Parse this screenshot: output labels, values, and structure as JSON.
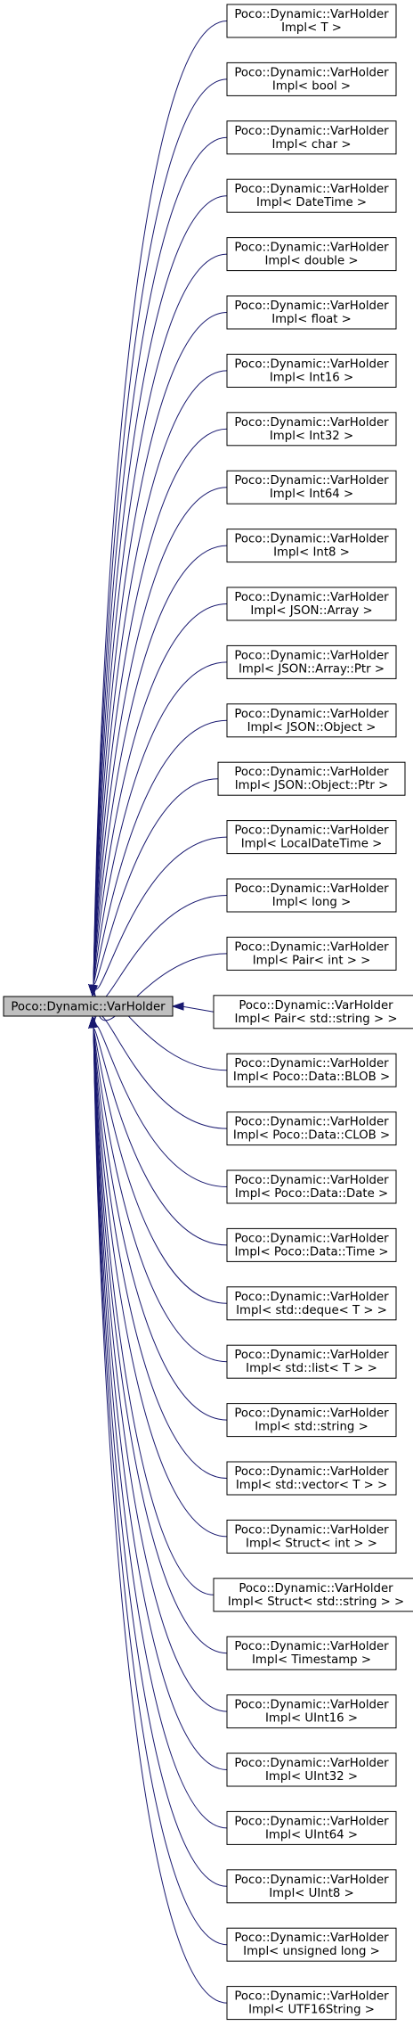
{
  "base": {
    "label": "Poco::Dynamic::VarHolder"
  },
  "derived": [
    {
      "line1": "Poco::Dynamic::VarHolder",
      "line2": "Impl< T >"
    },
    {
      "line1": "Poco::Dynamic::VarHolder",
      "line2": "Impl< bool >"
    },
    {
      "line1": "Poco::Dynamic::VarHolder",
      "line2": "Impl< char >"
    },
    {
      "line1": "Poco::Dynamic::VarHolder",
      "line2": "Impl< DateTime >"
    },
    {
      "line1": "Poco::Dynamic::VarHolder",
      "line2": "Impl< double >"
    },
    {
      "line1": "Poco::Dynamic::VarHolder",
      "line2": "Impl< float >"
    },
    {
      "line1": "Poco::Dynamic::VarHolder",
      "line2": "Impl< Int16 >"
    },
    {
      "line1": "Poco::Dynamic::VarHolder",
      "line2": "Impl< Int32 >"
    },
    {
      "line1": "Poco::Dynamic::VarHolder",
      "line2": "Impl< Int64 >"
    },
    {
      "line1": "Poco::Dynamic::VarHolder",
      "line2": "Impl< Int8 >"
    },
    {
      "line1": "Poco::Dynamic::VarHolder",
      "line2": "Impl< JSON::Array >"
    },
    {
      "line1": "Poco::Dynamic::VarHolder",
      "line2": "Impl< JSON::Array::Ptr >"
    },
    {
      "line1": "Poco::Dynamic::VarHolder",
      "line2": "Impl< JSON::Object >"
    },
    {
      "line1": "Poco::Dynamic::VarHolder",
      "line2": "Impl< JSON::Object::Ptr >"
    },
    {
      "line1": "Poco::Dynamic::VarHolder",
      "line2": "Impl< LocalDateTime >"
    },
    {
      "line1": "Poco::Dynamic::VarHolder",
      "line2": "Impl< long >"
    },
    {
      "line1": "Poco::Dynamic::VarHolder",
      "line2": "Impl< Pair< int > >"
    },
    {
      "line1": "Poco::Dynamic::VarHolder",
      "line2": "Impl< Pair< std::string > >"
    },
    {
      "line1": "Poco::Dynamic::VarHolder",
      "line2": "Impl< Poco::Data::BLOB >"
    },
    {
      "line1": "Poco::Dynamic::VarHolder",
      "line2": "Impl< Poco::Data::CLOB >"
    },
    {
      "line1": "Poco::Dynamic::VarHolder",
      "line2": "Impl< Poco::Data::Date >"
    },
    {
      "line1": "Poco::Dynamic::VarHolder",
      "line2": "Impl< Poco::Data::Time >"
    },
    {
      "line1": "Poco::Dynamic::VarHolder",
      "line2": "Impl< std::deque< T > >"
    },
    {
      "line1": "Poco::Dynamic::VarHolder",
      "line2": "Impl< std::list< T > >"
    },
    {
      "line1": "Poco::Dynamic::VarHolder",
      "line2": "Impl< std::string >"
    },
    {
      "line1": "Poco::Dynamic::VarHolder",
      "line2": "Impl< std::vector< T > >"
    },
    {
      "line1": "Poco::Dynamic::VarHolder",
      "line2": "Impl< Struct< int > >"
    },
    {
      "line1": "Poco::Dynamic::VarHolder",
      "line2": "Impl< Struct< std::string > >"
    },
    {
      "line1": "Poco::Dynamic::VarHolder",
      "line2": "Impl< Timestamp >"
    },
    {
      "line1": "Poco::Dynamic::VarHolder",
      "line2": "Impl< UInt16 >"
    },
    {
      "line1": "Poco::Dynamic::VarHolder",
      "line2": "Impl< UInt32 >"
    },
    {
      "line1": "Poco::Dynamic::VarHolder",
      "line2": "Impl< UInt64 >"
    },
    {
      "line1": "Poco::Dynamic::VarHolder",
      "line2": "Impl< UInt8 >"
    },
    {
      "line1": "Poco::Dynamic::VarHolder",
      "line2": "Impl< unsigned long >"
    },
    {
      "line1": "Poco::Dynamic::VarHolder",
      "line2": "Impl< UTF16String >"
    }
  ],
  "colors": {
    "edge": "#191970",
    "base_fill": "#bfbfbf",
    "node_fill": "#ffffff",
    "border": "#000000"
  }
}
